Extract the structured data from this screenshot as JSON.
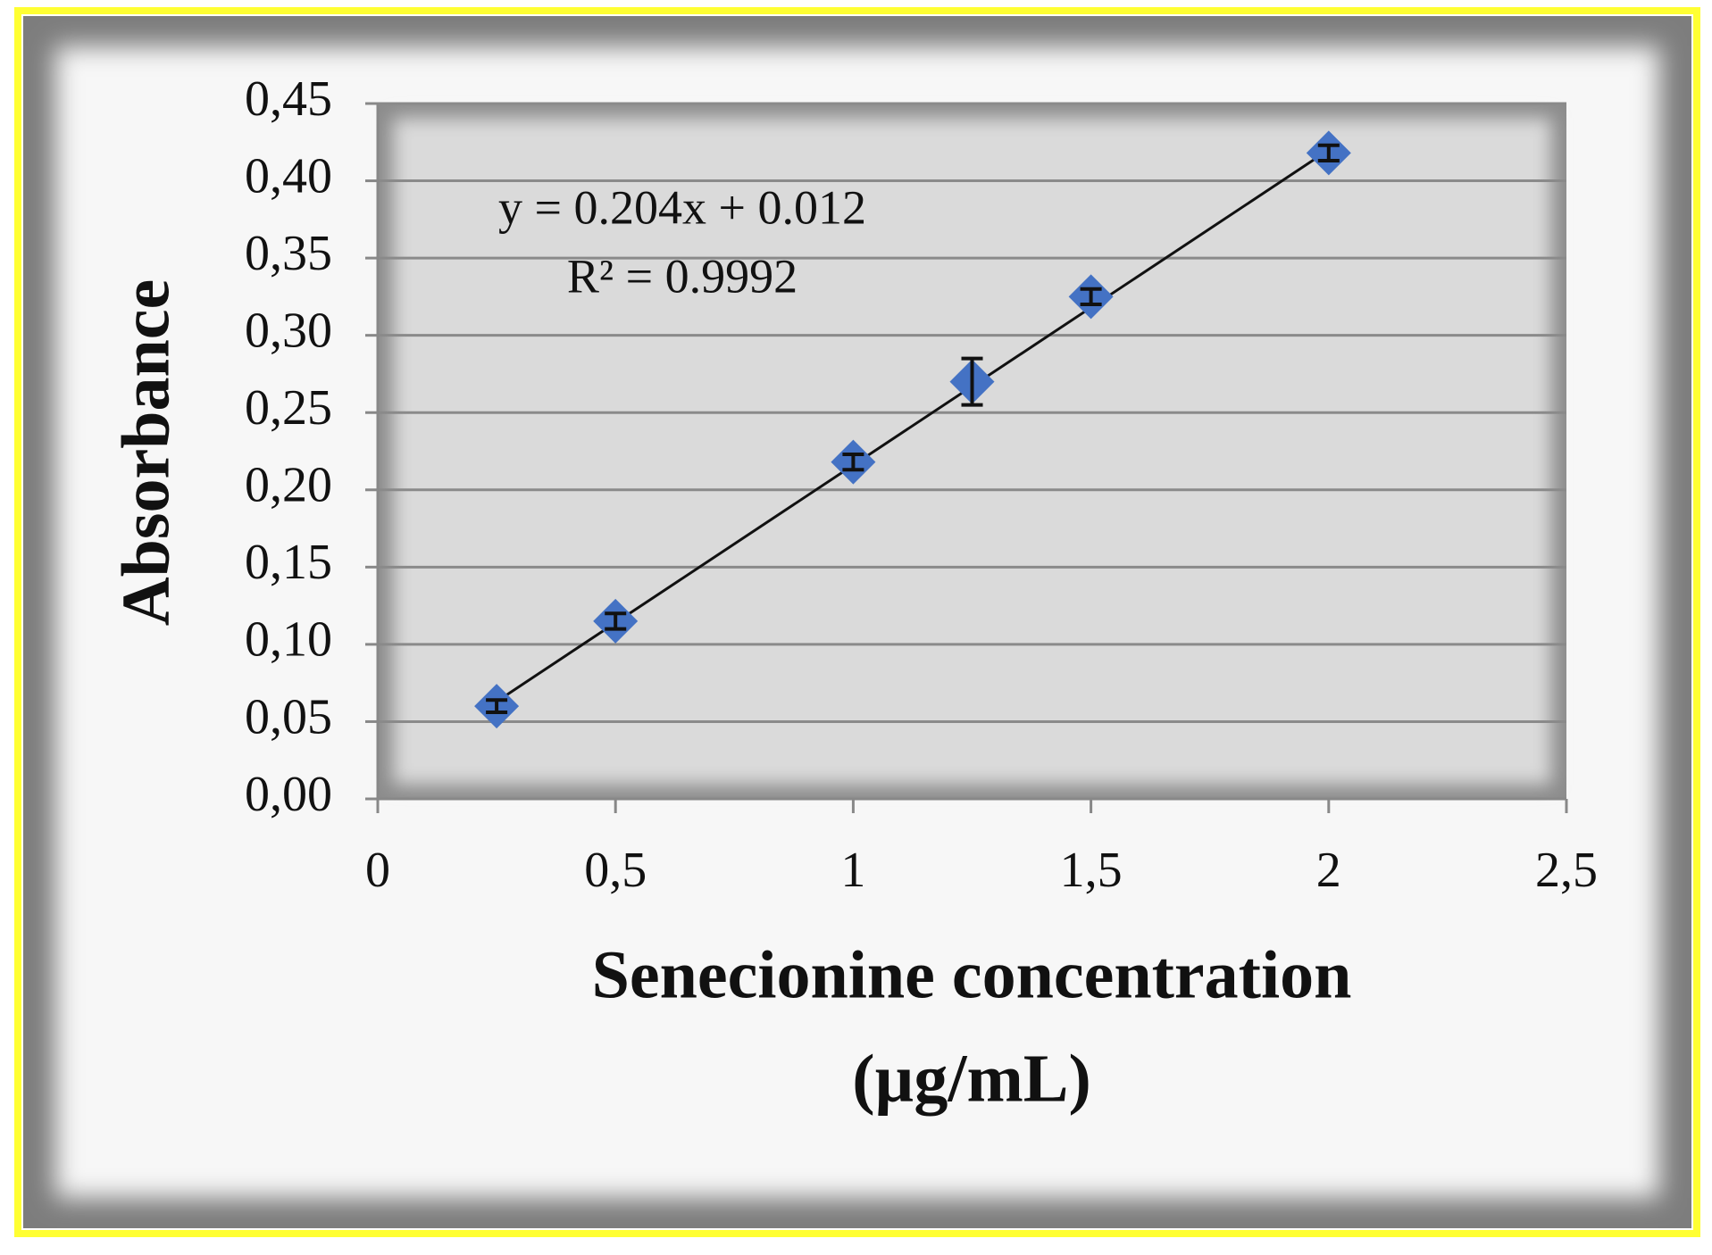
{
  "chart_data": {
    "type": "scatter",
    "xlabel": [
      "Senecionine concentration",
      "(µg/mL)"
    ],
    "ylabel": "Absorbance",
    "x": [
      0.25,
      0.5,
      1,
      1.25,
      1.5,
      2
    ],
    "series": [
      {
        "color": "#4472c4",
        "values": [
          0.06,
          0.115,
          0.218,
          0.27,
          0.325,
          0.418
        ],
        "errors": [
          0.004,
          0.005,
          0.005,
          0.015,
          0.005,
          0.005
        ]
      }
    ],
    "trendline": {
      "label": "y = 0.204x + 0.012",
      "r2_label": "R² = 0.9992",
      "slope": 0.204,
      "intercept": 0.012,
      "x_range": [
        0.25,
        2
      ]
    },
    "xlim": [
      0,
      2.5
    ],
    "xticks": [
      0,
      {
        "value": 0.5,
        "label": "0,5"
      },
      1,
      {
        "value": 1.5,
        "label": "1,5"
      },
      2,
      {
        "value": 2.5,
        "label": "2,5"
      }
    ],
    "ylim": [
      0,
      0.45
    ],
    "yticks": [
      {
        "value": 0,
        "label": "0,00"
      },
      {
        "value": 0.05,
        "label": "0,05"
      },
      {
        "value": 0.1,
        "label": "0,10"
      },
      {
        "value": 0.15,
        "label": "0,15"
      },
      {
        "value": 0.2,
        "label": "0,20"
      },
      {
        "value": 0.25,
        "label": "0,25"
      },
      {
        "value": 0.3,
        "label": "0,30"
      },
      {
        "value": 0.35,
        "label": "0,35"
      },
      {
        "value": 0.4,
        "label": "0,40"
      },
      {
        "value": 0.45,
        "label": "0,45"
      }
    ],
    "grid": true
  }
}
